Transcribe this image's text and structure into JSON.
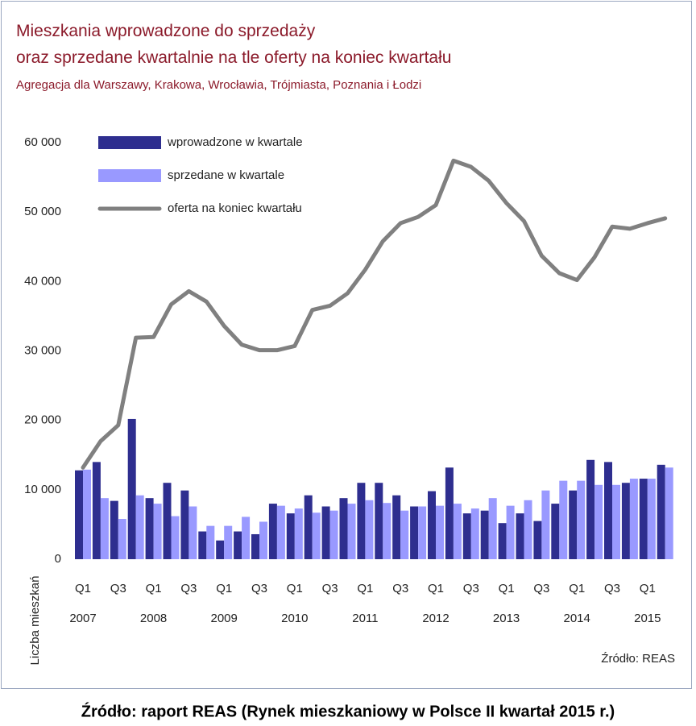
{
  "chart_data": {
    "type": "bar_line",
    "title_lines": [
      "Mieszkania wprowadzone do sprzedaży",
      "oraz sprzedane kwartalnie na tle oferty na koniec kwartału"
    ],
    "subtitle": "Agregacja dla  Warszawy, Krakowa, Wrocławia, Trójmiasta, Poznania i Łodzi",
    "y_axis_label": "Liczba mieszkań",
    "source": "Źródło: REAS",
    "caption": "Źródło: raport REAS (Rynek mieszkaniowy w Polsce II kwartał 2015 r.)",
    "categories": [
      "Q1",
      null,
      "Q3",
      null,
      "Q1",
      null,
      "Q3",
      null,
      "Q1",
      null,
      "Q3",
      null,
      "Q1",
      null,
      "Q3",
      null,
      "Q1",
      null,
      "Q3",
      null,
      "Q1",
      null,
      "Q3",
      null,
      "Q1",
      null,
      "Q3",
      null,
      "Q1",
      null,
      "Q3",
      null,
      "Q1",
      null
    ],
    "years": [
      "2007",
      null,
      null,
      null,
      "2008",
      null,
      null,
      null,
      "2009",
      null,
      null,
      null,
      "2010",
      null,
      null,
      null,
      "2011",
      null,
      null,
      null,
      "2012",
      null,
      null,
      null,
      "2013",
      null,
      null,
      null,
      "2014",
      null,
      null,
      null,
      "2015",
      null
    ],
    "series": [
      {
        "name": "wprowadzone w kwartale",
        "kind": "bar",
        "color": "#2e2e8f",
        "values": [
          12800,
          14000,
          8400,
          20200,
          8800,
          11000,
          9900,
          4000,
          2700,
          4000,
          3600,
          8000,
          6600,
          9200,
          7600,
          8800,
          11000,
          11000,
          9200,
          7600,
          9800,
          13200,
          6600,
          7000,
          5200,
          6600,
          5500,
          8000,
          9900,
          14300,
          14000,
          11000,
          11600,
          13600
        ]
      },
      {
        "name": "sprzedane w kwartale",
        "kind": "bar",
        "color": "#9999ff",
        "values": [
          12900,
          8800,
          5800,
          9200,
          8000,
          6200,
          7600,
          4800,
          4800,
          6100,
          5400,
          7700,
          7300,
          6700,
          7000,
          8000,
          8500,
          8100,
          7000,
          7600,
          7700,
          8000,
          7300,
          8800,
          7700,
          8500,
          9900,
          11300,
          11300,
          10700,
          10700,
          11600,
          11600,
          13200
        ]
      },
      {
        "name": "oferta na koniec kwartału",
        "kind": "line",
        "color": "#808080",
        "values": [
          13200,
          17000,
          19300,
          31900,
          32000,
          36700,
          38600,
          37100,
          33600,
          30900,
          30100,
          30100,
          30700,
          35900,
          36500,
          38300,
          41700,
          45800,
          48400,
          49300,
          51000,
          57400,
          56500,
          54500,
          51300,
          48700,
          43700,
          41200,
          40200,
          43500,
          47900,
          47600,
          48400,
          49100
        ]
      }
    ],
    "ylim": [
      0,
      60000
    ],
    "yticks": [
      0,
      {
        "value": 10000,
        "label": "10 000"
      },
      {
        "value": 20000,
        "label": "20 000"
      },
      {
        "value": 30000,
        "label": "30 000"
      },
      {
        "value": 40000,
        "label": "40 000"
      },
      {
        "value": 50000,
        "label": "50 000"
      },
      {
        "value": 60000,
        "label": "60 000"
      }
    ],
    "grid": false
  }
}
